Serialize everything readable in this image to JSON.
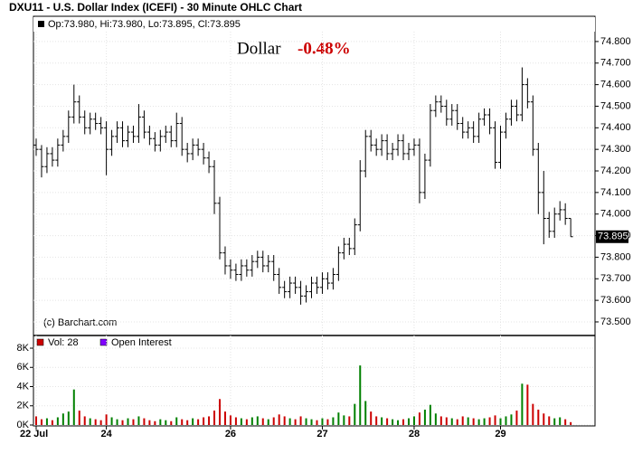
{
  "chart_data": {
    "type": "ohlc",
    "title": "DXU11 - U.S. Dollar Index (ICEFI) - 30 Minute OHLC Chart",
    "info": "Op:73.980, Hi:73.980, Lo:73.895, Cl:73.895",
    "annotation": "Dollar",
    "change": "-0.48%",
    "copyright": "(c) Barchart.com",
    "last": 73.895,
    "up_color": "#008000",
    "down_color": "#cc0000",
    "bar_color": "#000000",
    "grid": true,
    "x": [
      0,
      1,
      2,
      3,
      4,
      5,
      6,
      7,
      8,
      9,
      10,
      11,
      12,
      13,
      14,
      15,
      16,
      17,
      18,
      19,
      20,
      21,
      22,
      23,
      24,
      25,
      26,
      27,
      28,
      29,
      30,
      31,
      32,
      33,
      34,
      35,
      36,
      37,
      38,
      39,
      40,
      41,
      42,
      43,
      44,
      45,
      46,
      47,
      48,
      49,
      50,
      51,
      52,
      53,
      54,
      55,
      56,
      57,
      58,
      59,
      60,
      61,
      62,
      63,
      64,
      65,
      66,
      67,
      68,
      69,
      70,
      71,
      72,
      73,
      74,
      75,
      76,
      77,
      78,
      79,
      80,
      81,
      82,
      83,
      84,
      85,
      86,
      87,
      88,
      89,
      90,
      91,
      92,
      93,
      94,
      95,
      96,
      97,
      98,
      99
    ],
    "xlim": [
      -0.5,
      103.5
    ],
    "xticks": [
      {
        "value": 0,
        "label": "22 Jul"
      },
      {
        "value": 13,
        "label": "24"
      },
      {
        "value": 36,
        "label": "26"
      },
      {
        "value": 53,
        "label": "27"
      },
      {
        "value": 70,
        "label": "28"
      },
      {
        "value": 86,
        "label": "29"
      }
    ],
    "ohlc": [
      [
        74.32,
        74.35,
        74.27,
        74.3
      ],
      [
        74.3,
        74.32,
        74.17,
        74.22
      ],
      [
        74.22,
        74.31,
        74.19,
        74.28
      ],
      [
        74.28,
        74.31,
        74.22,
        74.25
      ],
      [
        74.25,
        74.35,
        74.22,
        74.32
      ],
      [
        74.32,
        74.39,
        74.29,
        74.36
      ],
      [
        74.36,
        74.48,
        74.33,
        74.45
      ],
      [
        74.45,
        74.6,
        74.42,
        74.52
      ],
      [
        74.52,
        74.55,
        74.42,
        74.45
      ],
      [
        74.45,
        74.48,
        74.37,
        74.4
      ],
      [
        74.4,
        74.47,
        74.37,
        74.44
      ],
      [
        74.44,
        74.47,
        74.39,
        74.42
      ],
      [
        74.42,
        74.45,
        74.37,
        74.4
      ],
      [
        74.4,
        74.43,
        74.18,
        74.3
      ],
      [
        74.3,
        74.39,
        74.27,
        74.36
      ],
      [
        74.36,
        74.43,
        74.33,
        74.4
      ],
      [
        74.4,
        74.43,
        74.31,
        74.34
      ],
      [
        74.34,
        74.41,
        74.31,
        74.38
      ],
      [
        74.38,
        74.41,
        74.33,
        74.36
      ],
      [
        74.36,
        74.51,
        74.33,
        74.45
      ],
      [
        74.45,
        74.48,
        74.35,
        74.38
      ],
      [
        74.38,
        74.41,
        74.32,
        74.35
      ],
      [
        74.35,
        74.38,
        74.29,
        74.32
      ],
      [
        74.32,
        74.39,
        74.29,
        74.36
      ],
      [
        74.36,
        74.41,
        74.33,
        74.38
      ],
      [
        74.38,
        74.41,
        74.31,
        74.34
      ],
      [
        74.34,
        74.47,
        74.31,
        74.42
      ],
      [
        74.42,
        74.45,
        74.27,
        74.3
      ],
      [
        74.3,
        74.33,
        74.24,
        74.28
      ],
      [
        74.28,
        74.35,
        74.25,
        74.32
      ],
      [
        74.32,
        74.35,
        74.27,
        74.3
      ],
      [
        74.3,
        74.33,
        74.23,
        74.26
      ],
      [
        74.26,
        74.29,
        74.19,
        74.22
      ],
      [
        74.22,
        74.25,
        74.0,
        74.05
      ],
      [
        74.05,
        74.08,
        73.79,
        73.82
      ],
      [
        73.82,
        73.85,
        73.72,
        73.76
      ],
      [
        73.76,
        73.79,
        73.7,
        73.74
      ],
      [
        73.74,
        73.77,
        73.69,
        73.72
      ],
      [
        73.72,
        73.79,
        73.69,
        73.76
      ],
      [
        73.76,
        73.79,
        73.71,
        73.74
      ],
      [
        73.74,
        73.81,
        73.71,
        73.78
      ],
      [
        73.78,
        73.83,
        73.75,
        73.8
      ],
      [
        73.8,
        73.83,
        73.73,
        73.76
      ],
      [
        73.76,
        73.81,
        73.73,
        73.78
      ],
      [
        73.78,
        73.81,
        73.69,
        73.72
      ],
      [
        73.72,
        73.75,
        73.63,
        73.66
      ],
      [
        73.66,
        73.69,
        73.61,
        73.64
      ],
      [
        73.64,
        73.71,
        73.61,
        73.68
      ],
      [
        73.68,
        73.71,
        73.63,
        73.66
      ],
      [
        73.66,
        73.69,
        73.58,
        73.62
      ],
      [
        73.62,
        73.67,
        73.59,
        73.64
      ],
      [
        73.64,
        73.71,
        73.61,
        73.68
      ],
      [
        73.68,
        73.71,
        73.63,
        73.66
      ],
      [
        73.66,
        73.73,
        73.63,
        73.7
      ],
      [
        73.7,
        73.73,
        73.65,
        73.68
      ],
      [
        73.68,
        73.75,
        73.65,
        73.72
      ],
      [
        73.72,
        73.85,
        73.69,
        73.82
      ],
      [
        73.82,
        73.89,
        73.79,
        73.86
      ],
      [
        73.86,
        73.89,
        73.81,
        73.84
      ],
      [
        73.84,
        73.98,
        73.81,
        73.95
      ],
      [
        73.95,
        74.25,
        73.92,
        74.2
      ],
      [
        74.2,
        74.39,
        74.17,
        74.36
      ],
      [
        74.36,
        74.39,
        74.29,
        74.32
      ],
      [
        74.32,
        74.35,
        74.27,
        74.3
      ],
      [
        74.3,
        74.37,
        74.27,
        74.34
      ],
      [
        74.34,
        74.37,
        74.25,
        74.28
      ],
      [
        74.28,
        74.33,
        74.25,
        74.3
      ],
      [
        74.3,
        74.37,
        74.27,
        74.34
      ],
      [
        74.34,
        74.37,
        74.25,
        74.28
      ],
      [
        74.28,
        74.33,
        74.25,
        74.3
      ],
      [
        74.3,
        74.35,
        74.27,
        74.32
      ],
      [
        74.32,
        74.35,
        74.05,
        74.1
      ],
      [
        74.1,
        74.28,
        74.07,
        74.25
      ],
      [
        74.25,
        74.51,
        74.22,
        74.48
      ],
      [
        74.48,
        74.55,
        74.45,
        74.52
      ],
      [
        74.52,
        74.55,
        74.47,
        74.5
      ],
      [
        74.5,
        74.53,
        74.41,
        74.44
      ],
      [
        74.44,
        74.51,
        74.41,
        74.48
      ],
      [
        74.48,
        74.51,
        74.39,
        74.42
      ],
      [
        74.42,
        74.45,
        74.35,
        74.38
      ],
      [
        74.38,
        74.43,
        74.35,
        74.4
      ],
      [
        74.4,
        74.43,
        74.33,
        74.36
      ],
      [
        74.36,
        74.47,
        74.33,
        74.44
      ],
      [
        74.44,
        74.49,
        74.41,
        74.46
      ],
      [
        74.46,
        74.49,
        74.37,
        74.4
      ],
      [
        74.4,
        74.43,
        74.21,
        74.24
      ],
      [
        74.24,
        74.41,
        74.21,
        74.38
      ],
      [
        74.38,
        74.47,
        74.35,
        74.44
      ],
      [
        74.44,
        74.53,
        74.41,
        74.5
      ],
      [
        74.5,
        74.53,
        74.43,
        74.46
      ],
      [
        74.46,
        74.68,
        74.43,
        74.6
      ],
      [
        74.6,
        74.63,
        74.49,
        74.52
      ],
      [
        74.52,
        74.55,
        74.27,
        74.3
      ],
      [
        74.3,
        74.33,
        74.0,
        74.1
      ],
      [
        74.1,
        74.2,
        73.86,
        73.98
      ],
      [
        73.98,
        74.01,
        73.89,
        73.92
      ],
      [
        73.92,
        74.03,
        73.89,
        74.0
      ],
      [
        74.0,
        74.06,
        73.97,
        74.02
      ],
      [
        74.02,
        74.05,
        73.95,
        73.98
      ],
      [
        73.98,
        73.98,
        73.895,
        73.895
      ]
    ],
    "ylim": [
      73.437,
      74.917
    ],
    "yticks": [
      {
        "value": 73.5,
        "label": "73.500"
      },
      {
        "value": 73.6,
        "label": "73.600"
      },
      {
        "value": 73.7,
        "label": "73.700"
      },
      {
        "value": 73.8,
        "label": "73.800"
      },
      {
        "value": 73.9,
        "label": "73.900"
      },
      {
        "value": 74.0,
        "label": "74.000"
      },
      {
        "value": 74.1,
        "label": "74.100"
      },
      {
        "value": 74.2,
        "label": "74.200"
      },
      {
        "value": 74.3,
        "label": "74.300"
      },
      {
        "value": 74.4,
        "label": "74.400"
      },
      {
        "value": 74.5,
        "label": "74.500"
      },
      {
        "value": 74.6,
        "label": "74.600"
      },
      {
        "value": 74.7,
        "label": "74.700"
      },
      {
        "value": 74.8,
        "label": "74.800"
      }
    ],
    "volume_legend": "Vol: 28",
    "volume_color": "#cc0000",
    "oi_legend": "Open Interest",
    "oi_color": "#8000ff",
    "volume": [
      900,
      600,
      700,
      500,
      800,
      1200,
      1400,
      3700,
      1500,
      900,
      700,
      600,
      500,
      1100,
      800,
      600,
      500,
      700,
      600,
      900,
      700,
      500,
      400,
      600,
      500,
      400,
      800,
      600,
      500,
      700,
      600,
      800,
      900,
      1500,
      2700,
      1400,
      1000,
      800,
      700,
      600,
      800,
      900,
      700,
      600,
      800,
      1100,
      900,
      700,
      600,
      900,
      700,
      600,
      500,
      700,
      600,
      800,
      1300,
      1000,
      900,
      2200,
      6200,
      2500,
      1400,
      900,
      800,
      700,
      600,
      500,
      600,
      700,
      900,
      1300,
      1600,
      2100,
      1200,
      900,
      800,
      700,
      600,
      900,
      800,
      700,
      600,
      700,
      800,
      1000,
      700,
      900,
      1100,
      1500,
      4300,
      4200,
      2200,
      1600,
      1200,
      900,
      700,
      800,
      600,
      300
    ],
    "y2lim": [
      0,
      9320
    ],
    "y2ticks": [
      {
        "value": 0,
        "label": "0K"
      },
      {
        "value": 2000,
        "label": "2K"
      },
      {
        "value": 4000,
        "label": "4K"
      },
      {
        "value": 6000,
        "label": "6K"
      },
      {
        "value": 8000,
        "label": "8K"
      }
    ]
  }
}
